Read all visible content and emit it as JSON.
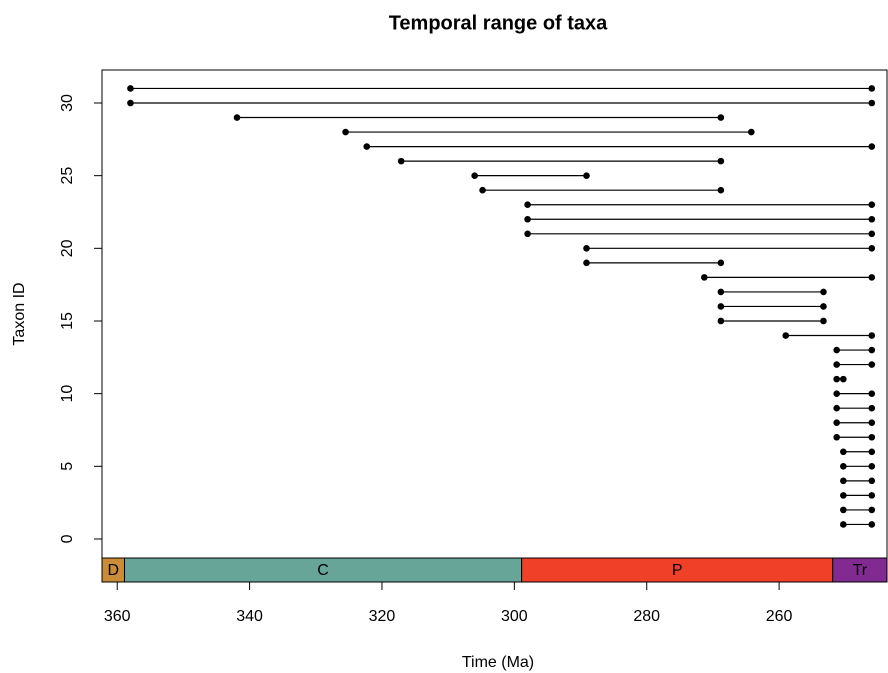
{
  "chart_data": {
    "type": "range",
    "title": "Temporal range of taxa",
    "x_label": "Time (Ma)",
    "y_label": "Taxon ID",
    "xlim": [
      362.3,
      243.7
    ],
    "ylim": [
      -2.96,
      32.27
    ],
    "xticks": [
      360,
      340,
      320,
      300,
      280,
      260
    ],
    "yticks": [
      0,
      5,
      10,
      15,
      20,
      25,
      30
    ],
    "ids": [
      1,
      2,
      3,
      4,
      5,
      6,
      7,
      8,
      9,
      10,
      11,
      12,
      13,
      14,
      15,
      16,
      17,
      18,
      19,
      20,
      21,
      22,
      23,
      24,
      25,
      26,
      27,
      28,
      29,
      30,
      31
    ],
    "start": [
      250.3,
      250.3,
      250.3,
      250.3,
      250.3,
      250.3,
      251.3,
      251.3,
      251.3,
      251.3,
      251.3,
      251.3,
      251.3,
      259,
      268.8,
      268.8,
      268.8,
      271.3,
      289.1,
      289.1,
      298,
      298,
      298,
      304.8,
      306,
      317.1,
      322.3,
      325.5,
      341.9,
      358,
      358
    ],
    "end": [
      246,
      246,
      246,
      246,
      246,
      246,
      246,
      246,
      246,
      246,
      250.3,
      246,
      246,
      246,
      253.3,
      253.3,
      253.3,
      246,
      268.8,
      246,
      246,
      246,
      246,
      268.8,
      289.1,
      268.8,
      246,
      264.2,
      268.8,
      246,
      246
    ],
    "color": "#000000",
    "timescale": {
      "band": [
        -1.31,
        -2.96
      ],
      "periods": [
        {
          "name": "D",
          "start": 419.2,
          "end": 358.9,
          "color": "#cb8c37"
        },
        {
          "name": "C",
          "start": 358.9,
          "end": 298.9,
          "color": "#67a599"
        },
        {
          "name": "P",
          "start": 298.9,
          "end": 251.9,
          "color": "#f04028"
        },
        {
          "name": "Tr",
          "start": 251.9,
          "end": 201.3,
          "color": "#812b92"
        }
      ]
    }
  }
}
